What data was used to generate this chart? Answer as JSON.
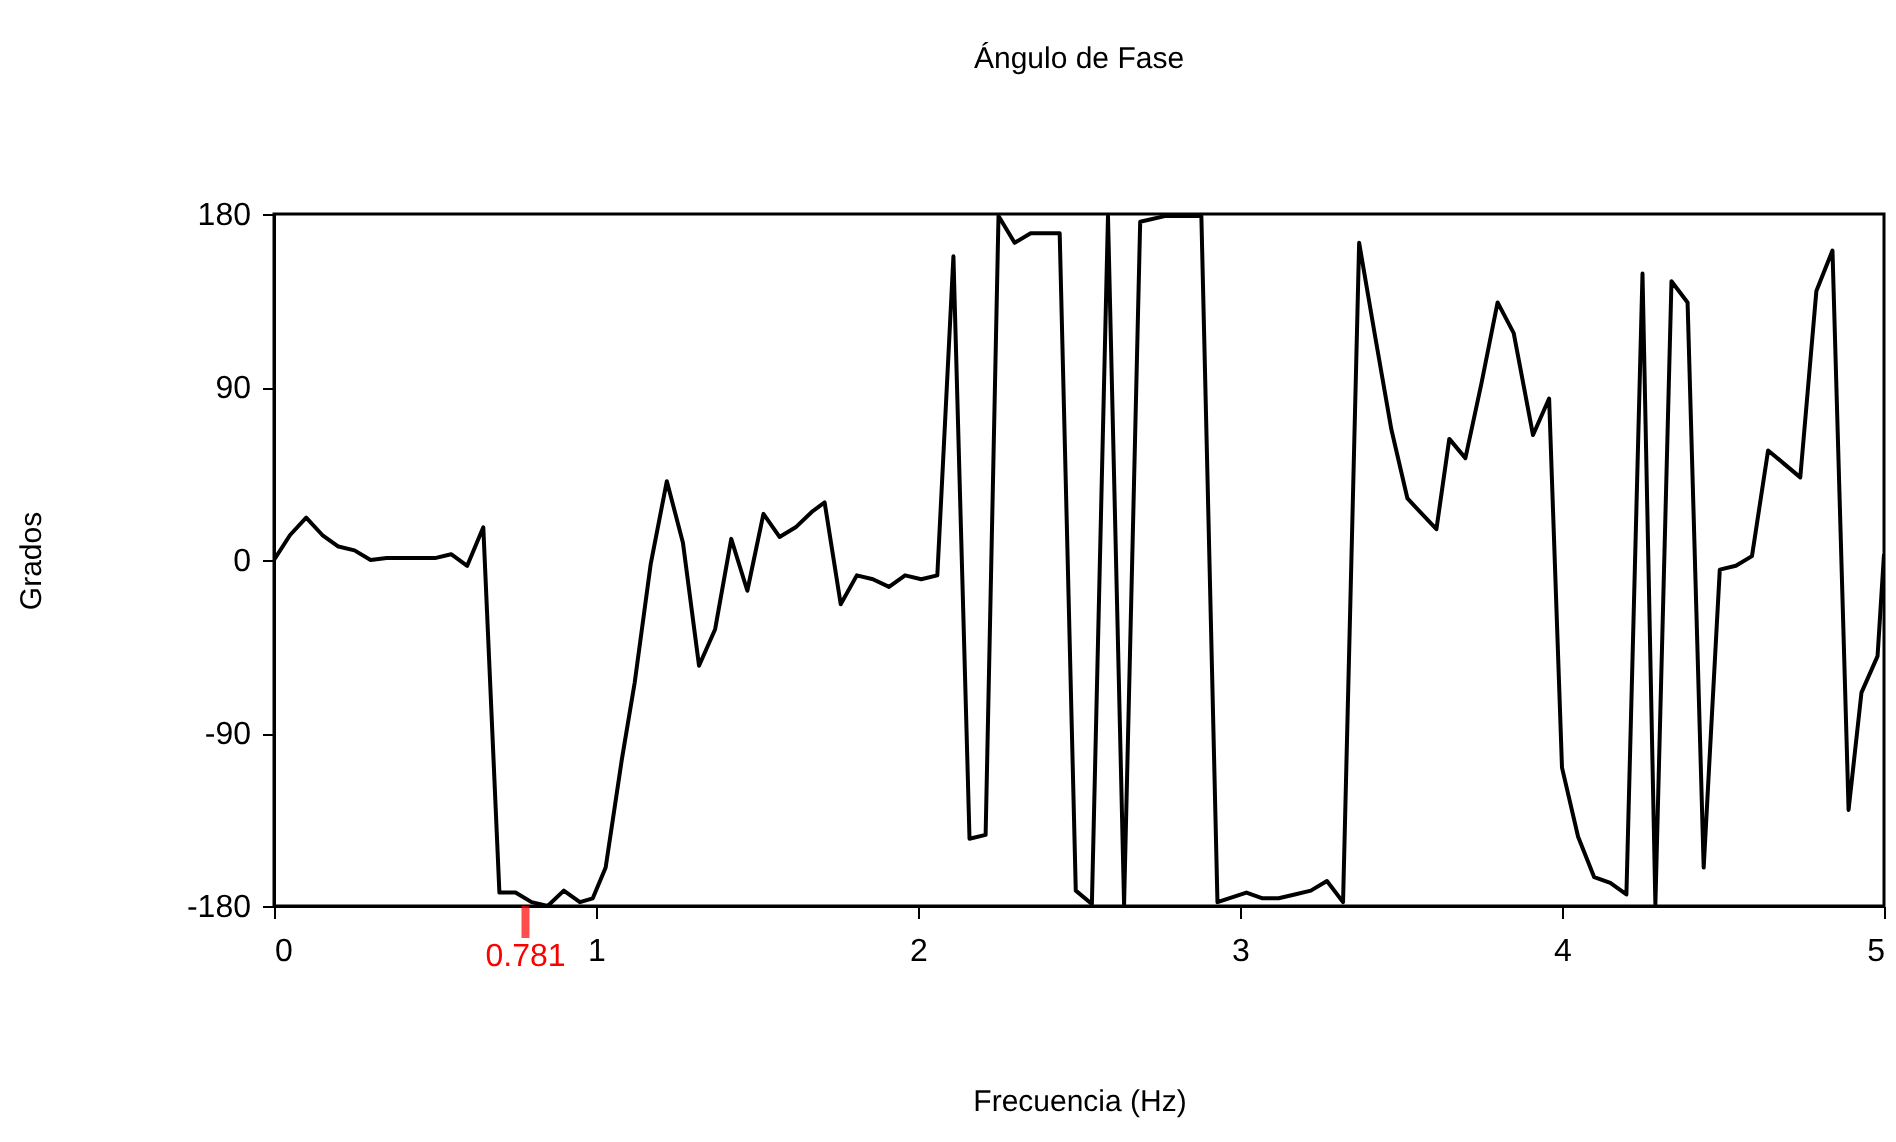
{
  "chart_data": {
    "type": "line",
    "title": "Ángulo de Fase",
    "xlabel": "Frecuencia (Hz)",
    "ylabel": "Grados",
    "x": [
      0,
      0.05,
      0.1,
      0.15,
      0.2,
      0.25,
      0.3,
      0.35,
      0.4,
      0.45,
      0.5,
      0.55,
      0.6,
      0.65,
      0.7,
      0.75,
      0.8,
      0.85,
      0.9,
      0.95,
      0.99,
      1.03,
      1.08,
      1.12,
      1.17,
      1.22,
      1.27,
      1.32,
      1.37,
      1.42,
      1.47,
      1.52,
      1.57,
      1.62,
      1.67,
      1.71,
      1.76,
      1.81,
      1.86,
      1.91,
      1.96,
      2.01,
      2.06,
      2.11,
      2.16,
      2.21,
      2.25,
      2.3,
      2.35,
      2.39,
      2.44,
      2.49,
      2.54,
      2.59,
      2.64,
      2.69,
      2.77,
      2.88,
      2.93,
      3.02,
      3.07,
      3.12,
      3.17,
      3.22,
      3.27,
      3.32,
      3.37,
      3.42,
      3.47,
      3.52,
      3.61,
      3.65,
      3.7,
      3.75,
      3.8,
      3.85,
      3.91,
      3.96,
      4.0,
      4.05,
      4.1,
      4.15,
      4.2,
      4.25,
      4.29,
      4.34,
      4.39,
      4.44,
      4.49,
      4.54,
      4.59,
      4.64,
      4.69,
      4.74,
      4.79,
      4.84,
      4.89,
      4.93,
      4.98,
      5.0
    ],
    "series": [
      {
        "color": "#000000",
        "values": [
          0,
          13,
          22,
          13,
          7,
          5,
          0,
          1,
          1,
          1,
          1,
          3,
          -3,
          17,
          -173,
          -173,
          -178,
          -180,
          -172,
          -178,
          -176,
          -160,
          -104,
          -64,
          -2,
          41,
          9,
          -55,
          -36,
          11,
          -16,
          24,
          12,
          17,
          25,
          30,
          -23,
          -8,
          -10,
          -14,
          -8,
          -10,
          -8,
          158,
          -145,
          -143,
          179,
          165,
          170,
          170,
          170,
          -172,
          -179,
          179,
          -179,
          176,
          179,
          179,
          -178,
          -173,
          -176,
          -176,
          -174,
          -172,
          -167,
          -178,
          165,
          116,
          68,
          32,
          16,
          63,
          53,
          92,
          134,
          118,
          65,
          84,
          -108,
          -144,
          -165,
          -168,
          -174,
          149,
          -179,
          145,
          134,
          -160,
          -5,
          -3,
          2,
          57,
          50,
          43,
          140,
          161,
          -130,
          -69,
          -50,
          3
        ]
      }
    ],
    "xlim": [
      0,
      5
    ],
    "xticks": [
      0,
      1,
      2,
      3,
      4,
      5
    ],
    "ylim": [
      -180,
      180
    ],
    "yticks": [
      -180,
      -90,
      0,
      90,
      180
    ],
    "grid": false,
    "line_style": "solid",
    "marker": "none",
    "annotations": [
      {
        "text": "0.781",
        "x": 0.781,
        "y": -180
      }
    ]
  }
}
